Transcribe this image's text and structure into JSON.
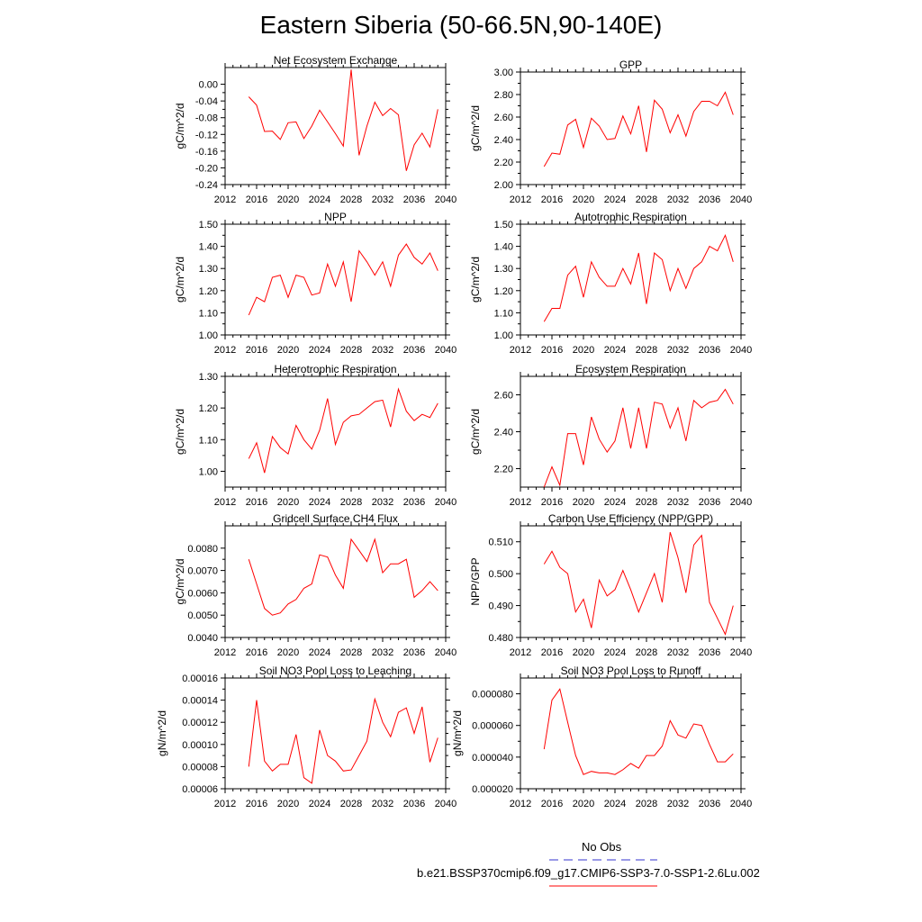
{
  "title": "Eastern Siberia (50-66.5N,90-140E)",
  "legend": {
    "entries": [
      {
        "label": "No Obs",
        "color": "#3333cc",
        "style": "dashed"
      },
      {
        "label": "b.e21.BSSP370cmip6.f09_g17.CMIP6-SSP3-7.0-SSP1-2.6Lu.002",
        "color": "#ff0000",
        "style": "solid"
      }
    ]
  },
  "chart_data": [
    {
      "type": "line",
      "title": "Net Ecosystem Exchange",
      "ylabel": "gC/m^2/d",
      "xlim": [
        2012,
        2040
      ],
      "ylim": [
        -0.24,
        0.04
      ],
      "xticks": [
        "2012",
        "2016",
        "2020",
        "2024",
        "2028",
        "2032",
        "2036",
        "2040"
      ],
      "yticks": [
        "0.00",
        "-0.04",
        "-0.08",
        "-0.12",
        "-0.16",
        "-0.20",
        "-0.24"
      ],
      "ytick_values": [
        0.0,
        -0.04,
        -0.08,
        -0.12,
        -0.16,
        -0.2,
        -0.24
      ],
      "x": [
        2015,
        2016,
        2017,
        2018,
        2019,
        2020,
        2021,
        2022,
        2023,
        2024,
        2025,
        2026,
        2027,
        2028,
        2029,
        2030,
        2031,
        2032,
        2033,
        2034,
        2035,
        2036,
        2037,
        2038,
        2039
      ],
      "series": [
        {
          "color": "#ff0000",
          "values": [
            -0.03,
            -0.05,
            -0.113,
            -0.112,
            -0.132,
            -0.092,
            -0.09,
            -0.13,
            -0.1,
            -0.062,
            -0.09,
            -0.118,
            -0.148,
            0.035,
            -0.17,
            -0.1,
            -0.043,
            -0.075,
            -0.058,
            -0.073,
            -0.207,
            -0.145,
            -0.117,
            -0.15,
            -0.06
          ]
        }
      ]
    },
    {
      "type": "line",
      "title": "GPP",
      "ylabel": "gC/m^2/d",
      "xlim": [
        2012,
        2040
      ],
      "ylim": [
        2.0,
        3.0
      ],
      "xticks": [
        "2012",
        "2016",
        "2020",
        "2024",
        "2028",
        "2032",
        "2036",
        "2040"
      ],
      "yticks": [
        "2.00",
        "2.20",
        "2.40",
        "2.60",
        "2.80",
        "3.00"
      ],
      "ytick_values": [
        2.0,
        2.2,
        2.4,
        2.6,
        2.8,
        3.0
      ],
      "x": [
        2015,
        2016,
        2017,
        2018,
        2019,
        2020,
        2021,
        2022,
        2023,
        2024,
        2025,
        2026,
        2027,
        2028,
        2029,
        2030,
        2031,
        2032,
        2033,
        2034,
        2035,
        2036,
        2037,
        2038,
        2039
      ],
      "series": [
        {
          "color": "#ff0000",
          "values": [
            2.16,
            2.28,
            2.27,
            2.53,
            2.58,
            2.33,
            2.59,
            2.52,
            2.4,
            2.41,
            2.61,
            2.45,
            2.7,
            2.29,
            2.75,
            2.67,
            2.46,
            2.62,
            2.43,
            2.65,
            2.74,
            2.74,
            2.7,
            2.82,
            2.62
          ]
        }
      ]
    },
    {
      "type": "line",
      "title": "NPP",
      "ylabel": "gC/m^2/d",
      "xlim": [
        2012,
        2040
      ],
      "ylim": [
        1.0,
        1.5
      ],
      "xticks": [
        "2012",
        "2016",
        "2020",
        "2024",
        "2028",
        "2032",
        "2036",
        "2040"
      ],
      "yticks": [
        "1.00",
        "1.10",
        "1.20",
        "1.30",
        "1.40",
        "1.50"
      ],
      "ytick_values": [
        1.0,
        1.1,
        1.2,
        1.3,
        1.4,
        1.5
      ],
      "x": [
        2015,
        2016,
        2017,
        2018,
        2019,
        2020,
        2021,
        2022,
        2023,
        2024,
        2025,
        2026,
        2027,
        2028,
        2029,
        2030,
        2031,
        2032,
        2033,
        2034,
        2035,
        2036,
        2037,
        2038,
        2039
      ],
      "series": [
        {
          "color": "#ff0000",
          "values": [
            1.09,
            1.17,
            1.15,
            1.26,
            1.27,
            1.17,
            1.27,
            1.26,
            1.18,
            1.19,
            1.32,
            1.22,
            1.33,
            1.15,
            1.38,
            1.33,
            1.27,
            1.33,
            1.22,
            1.36,
            1.41,
            1.35,
            1.32,
            1.37,
            1.29
          ]
        }
      ]
    },
    {
      "type": "line",
      "title": "Autotrophic Respiration",
      "ylabel": "gC/m^2/d",
      "xlim": [
        2012,
        2040
      ],
      "ylim": [
        1.0,
        1.5
      ],
      "xticks": [
        "2012",
        "2016",
        "2020",
        "2024",
        "2028",
        "2032",
        "2036",
        "2040"
      ],
      "yticks": [
        "1.00",
        "1.10",
        "1.20",
        "1.30",
        "1.40",
        "1.50"
      ],
      "ytick_values": [
        1.0,
        1.1,
        1.2,
        1.3,
        1.4,
        1.5
      ],
      "x": [
        2015,
        2016,
        2017,
        2018,
        2019,
        2020,
        2021,
        2022,
        2023,
        2024,
        2025,
        2026,
        2027,
        2028,
        2029,
        2030,
        2031,
        2032,
        2033,
        2034,
        2035,
        2036,
        2037,
        2038,
        2039
      ],
      "series": [
        {
          "color": "#ff0000",
          "values": [
            1.06,
            1.12,
            1.12,
            1.27,
            1.31,
            1.17,
            1.33,
            1.26,
            1.22,
            1.22,
            1.3,
            1.23,
            1.37,
            1.14,
            1.37,
            1.34,
            1.2,
            1.3,
            1.21,
            1.3,
            1.33,
            1.4,
            1.38,
            1.45,
            1.33
          ]
        }
      ]
    },
    {
      "type": "line",
      "title": "Heterotrophic Respiration",
      "ylabel": "gC/m^2/d",
      "xlim": [
        2012,
        2040
      ],
      "ylim": [
        0.95,
        1.3
      ],
      "xticks": [
        "2012",
        "2016",
        "2020",
        "2024",
        "2028",
        "2032",
        "2036",
        "2040"
      ],
      "yticks": [
        "1.00",
        "1.10",
        "1.20",
        "1.30"
      ],
      "ytick_values": [
        1.0,
        1.1,
        1.2,
        1.3
      ],
      "x": [
        2015,
        2016,
        2017,
        2018,
        2019,
        2020,
        2021,
        2022,
        2023,
        2024,
        2025,
        2026,
        2027,
        2028,
        2029,
        2030,
        2031,
        2032,
        2033,
        2034,
        2035,
        2036,
        2037,
        2038,
        2039
      ],
      "series": [
        {
          "color": "#ff0000",
          "values": [
            1.04,
            1.09,
            0.995,
            1.11,
            1.075,
            1.055,
            1.145,
            1.1,
            1.07,
            1.13,
            1.23,
            1.085,
            1.155,
            1.175,
            1.18,
            1.2,
            1.22,
            1.225,
            1.14,
            1.26,
            1.19,
            1.16,
            1.18,
            1.17,
            1.215
          ]
        }
      ]
    },
    {
      "type": "line",
      "title": "Ecosystem Respiration",
      "ylabel": "gC/m^2/d",
      "xlim": [
        2012,
        2040
      ],
      "ylim": [
        2.1,
        2.7
      ],
      "xticks": [
        "2012",
        "2016",
        "2020",
        "2024",
        "2028",
        "2032",
        "2036",
        "2040"
      ],
      "yticks": [
        "2.20",
        "2.40",
        "2.60"
      ],
      "ytick_values": [
        2.2,
        2.4,
        2.6
      ],
      "x": [
        2015,
        2016,
        2017,
        2018,
        2019,
        2020,
        2021,
        2022,
        2023,
        2024,
        2025,
        2026,
        2027,
        2028,
        2029,
        2030,
        2031,
        2032,
        2033,
        2034,
        2035,
        2036,
        2037,
        2038,
        2039
      ],
      "series": [
        {
          "color": "#ff0000",
          "values": [
            2.1,
            2.21,
            2.11,
            2.39,
            2.39,
            2.22,
            2.48,
            2.36,
            2.29,
            2.35,
            2.53,
            2.31,
            2.53,
            2.31,
            2.56,
            2.55,
            2.42,
            2.53,
            2.35,
            2.57,
            2.53,
            2.56,
            2.57,
            2.63,
            2.55
          ]
        }
      ]
    },
    {
      "type": "line",
      "title": "Gridcell Surface CH4 Flux",
      "ylabel": "gC/m^2/d",
      "xlim": [
        2012,
        2040
      ],
      "ylim": [
        0.004,
        0.009
      ],
      "xticks": [
        "2012",
        "2016",
        "2020",
        "2024",
        "2028",
        "2032",
        "2036",
        "2040"
      ],
      "yticks": [
        "0.0040",
        "0.0050",
        "0.0060",
        "0.0070",
        "0.0080"
      ],
      "ytick_values": [
        0.004,
        0.005,
        0.006,
        0.007,
        0.008
      ],
      "x": [
        2015,
        2016,
        2017,
        2018,
        2019,
        2020,
        2021,
        2022,
        2023,
        2024,
        2025,
        2026,
        2027,
        2028,
        2029,
        2030,
        2031,
        2032,
        2033,
        2034,
        2035,
        2036,
        2037,
        2038,
        2039
      ],
      "series": [
        {
          "color": "#ff0000",
          "values": [
            0.0075,
            0.0064,
            0.0053,
            0.005,
            0.0051,
            0.0055,
            0.0057,
            0.0062,
            0.0064,
            0.0077,
            0.0076,
            0.0068,
            0.0062,
            0.0084,
            0.0079,
            0.0074,
            0.0084,
            0.0069,
            0.0073,
            0.0073,
            0.0075,
            0.0058,
            0.0061,
            0.0065,
            0.0061
          ]
        }
      ]
    },
    {
      "type": "line",
      "title": "Carbon Use Efficiency (NPP/GPP)",
      "ylabel": "NPP/GPP",
      "xlim": [
        2012,
        2040
      ],
      "ylim": [
        0.48,
        0.515
      ],
      "xticks": [
        "2012",
        "2016",
        "2020",
        "2024",
        "2028",
        "2032",
        "2036",
        "2040"
      ],
      "yticks": [
        "0.480",
        "0.490",
        "0.500",
        "0.510"
      ],
      "ytick_values": [
        0.48,
        0.49,
        0.5,
        0.51
      ],
      "x": [
        2015,
        2016,
        2017,
        2018,
        2019,
        2020,
        2021,
        2022,
        2023,
        2024,
        2025,
        2026,
        2027,
        2028,
        2029,
        2030,
        2031,
        2032,
        2033,
        2034,
        2035,
        2036,
        2037,
        2038,
        2039
      ],
      "series": [
        {
          "color": "#ff0000",
          "values": [
            0.503,
            0.507,
            0.502,
            0.5,
            0.488,
            0.492,
            0.483,
            0.498,
            0.493,
            0.495,
            0.501,
            0.495,
            0.488,
            0.494,
            0.5,
            0.491,
            0.513,
            0.505,
            0.494,
            0.509,
            0.512,
            0.491,
            0.486,
            0.481,
            0.49
          ]
        }
      ]
    },
    {
      "type": "line",
      "title": "Soil NO3 Pool Loss to Leaching",
      "ylabel": "gN/m^2/d",
      "xlim": [
        2012,
        2040
      ],
      "ylim": [
        6e-05,
        0.00016
      ],
      "xticks": [
        "2012",
        "2016",
        "2020",
        "2024",
        "2028",
        "2032",
        "2036",
        "2040"
      ],
      "yticks": [
        "0.00006",
        "0.00008",
        "0.00010",
        "0.00012",
        "0.00014",
        "0.00016"
      ],
      "ytick_values": [
        6e-05,
        8e-05,
        0.0001,
        0.00012,
        0.00014,
        0.00016
      ],
      "x": [
        2015,
        2016,
        2017,
        2018,
        2019,
        2020,
        2021,
        2022,
        2023,
        2024,
        2025,
        2026,
        2027,
        2028,
        2029,
        2030,
        2031,
        2032,
        2033,
        2034,
        2035,
        2036,
        2037,
        2038,
        2039
      ],
      "series": [
        {
          "color": "#ff0000",
          "values": [
            8e-05,
            0.00014,
            8.5e-05,
            7.6e-05,
            8.2e-05,
            8.2e-05,
            0.000109,
            7e-05,
            6.5e-05,
            0.000113,
            9e-05,
            8.5e-05,
            7.6e-05,
            7.7e-05,
            9e-05,
            0.000103,
            0.000141,
            0.00012,
            0.000107,
            0.000129,
            0.000133,
            0.00011,
            0.000134,
            8.4e-05,
            0.000106
          ]
        }
      ]
    },
    {
      "type": "line",
      "title": "Soil NO3 Pool Loss to Runoff",
      "ylabel": "gN/m^2/d",
      "xlim": [
        2012,
        2040
      ],
      "ylim": [
        2e-05,
        9e-05
      ],
      "xticks": [
        "2012",
        "2016",
        "2020",
        "2024",
        "2028",
        "2032",
        "2036",
        "2040"
      ],
      "yticks": [
        "0.000020",
        "0.000040",
        "0.000060",
        "0.000080"
      ],
      "ytick_values": [
        2e-05,
        4e-05,
        6e-05,
        8e-05
      ],
      "x": [
        2015,
        2016,
        2017,
        2018,
        2019,
        2020,
        2021,
        2022,
        2023,
        2024,
        2025,
        2026,
        2027,
        2028,
        2029,
        2030,
        2031,
        2032,
        2033,
        2034,
        2035,
        2036,
        2037,
        2038,
        2039
      ],
      "series": [
        {
          "color": "#ff0000",
          "values": [
            4.5e-05,
            7.6e-05,
            8.3e-05,
            6.2e-05,
            4.1e-05,
            2.9e-05,
            3.1e-05,
            3e-05,
            3e-05,
            2.9e-05,
            3.2e-05,
            3.6e-05,
            3.3e-05,
            4.1e-05,
            4.1e-05,
            4.7e-05,
            6.3e-05,
            5.4e-05,
            5.2e-05,
            6.1e-05,
            6e-05,
            4.8e-05,
            3.7e-05,
            3.7e-05,
            4.2e-05
          ]
        }
      ]
    }
  ]
}
